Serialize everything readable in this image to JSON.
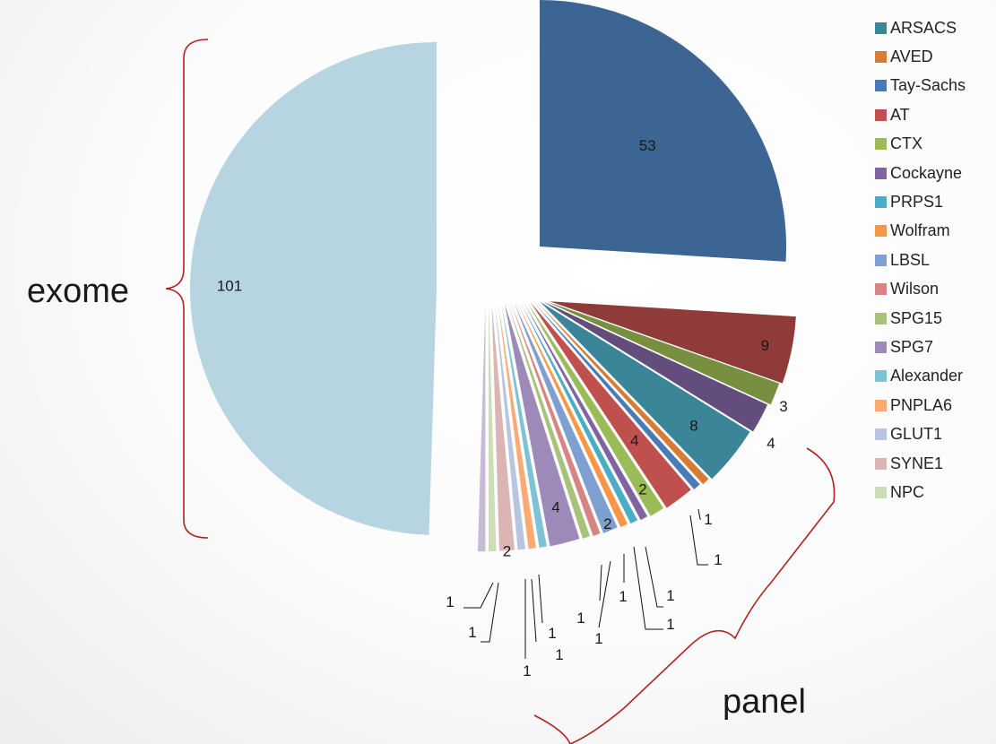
{
  "chart_data": {
    "type": "pie",
    "slices": [
      {
        "value": 53,
        "label": "53",
        "color": "#3d6594"
      },
      {
        "value": 9,
        "label": "9",
        "color": "#8e3b39"
      },
      {
        "value": 3,
        "label": "3",
        "color": "#788f3f"
      },
      {
        "value": 4,
        "label": "4",
        "color": "#634d7d"
      },
      {
        "value": 8,
        "label": "8",
        "color": "#3a8698"
      },
      {
        "value": 1,
        "label": "1",
        "color": "#d77c34"
      },
      {
        "value": 1,
        "label": "1",
        "color": "#4a7ab7"
      },
      {
        "value": 4,
        "label": "4",
        "color": "#c0504d"
      },
      {
        "value": 2,
        "label": "2",
        "color": "#9bbb59"
      },
      {
        "value": 1,
        "label": "1",
        "color": "#8064a2"
      },
      {
        "value": 1,
        "label": "1",
        "color": "#4bacc6"
      },
      {
        "value": 1,
        "label": "1",
        "color": "#f79646"
      },
      {
        "value": 2,
        "label": "2",
        "color": "#7f9fd0"
      },
      {
        "value": 1,
        "label": "1",
        "color": "#d78583"
      },
      {
        "value": 1,
        "label": "1",
        "color": "#a7c37a"
      },
      {
        "value": 4,
        "label": "4",
        "color": "#9d8ab9"
      },
      {
        "value": 1,
        "label": "1",
        "color": "#7ec3d5"
      },
      {
        "value": 1,
        "label": "1",
        "color": "#f9ab73"
      },
      {
        "value": 1,
        "label": "1",
        "color": "#b8c5e0"
      },
      {
        "value": 2,
        "label": "2",
        "color": "#dbb5b4"
      },
      {
        "value": 1,
        "label": "1",
        "color": "#cdddb5"
      },
      {
        "value": 1,
        "label": "1",
        "color": "#c7bbd8"
      },
      {
        "value": 101,
        "label": "101",
        "color": "#b7d5e1"
      }
    ],
    "legend": [
      {
        "name": "ARSACS",
        "color": "#3a8698"
      },
      {
        "name": "AVED",
        "color": "#d77c34"
      },
      {
        "name": "Tay-Sachs",
        "color": "#4a7ab7"
      },
      {
        "name": "AT",
        "color": "#c0504d"
      },
      {
        "name": "CTX",
        "color": "#9bbb59"
      },
      {
        "name": "Cockayne",
        "color": "#8064a2"
      },
      {
        "name": "PRPS1",
        "color": "#4bacc6"
      },
      {
        "name": "Wolfram",
        "color": "#f79646"
      },
      {
        "name": "LBSL",
        "color": "#7f9fd0"
      },
      {
        "name": "Wilson",
        "color": "#d78583"
      },
      {
        "name": "SPG15",
        "color": "#a7c37a"
      },
      {
        "name": "SPG7",
        "color": "#9d8ab9"
      },
      {
        "name": "Alexander",
        "color": "#7ec3d5"
      },
      {
        "name": "PNPLA6",
        "color": "#f9ab73"
      },
      {
        "name": "GLUT1",
        "color": "#b8c5e0"
      },
      {
        "name": "SYNE1",
        "color": "#dbb5b4"
      },
      {
        "name": "NPC",
        "color": "#cdddb5"
      }
    ],
    "legend_placement": "right",
    "groups": [
      {
        "label": "exome",
        "side": "left"
      },
      {
        "label": "panel",
        "side": "bottom"
      }
    ],
    "bracket_color": "#b22222"
  }
}
